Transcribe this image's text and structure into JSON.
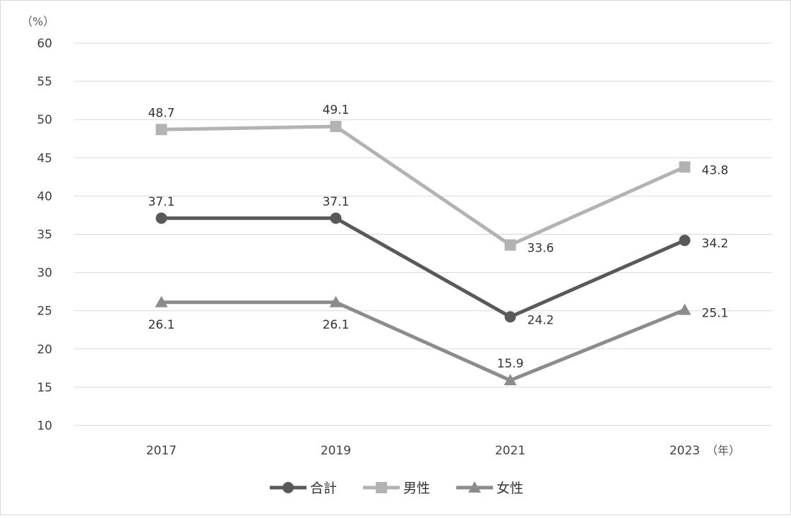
{
  "chart_data": {
    "type": "line",
    "y_unit_label": "（%）",
    "x_unit_label": "（年）",
    "categories": [
      "2017",
      "2019",
      "2021",
      "2023"
    ],
    "ylim": [
      10,
      60
    ],
    "y_ticks": [
      10,
      15,
      20,
      25,
      30,
      35,
      40,
      45,
      50,
      55,
      60
    ],
    "grid": true,
    "legend_position": "bottom",
    "series": [
      {
        "name": "合計",
        "values": [
          37.1,
          37.1,
          24.2,
          34.2
        ],
        "marker": "circle",
        "color": "#595959",
        "label_position": [
          "above",
          "above",
          "right",
          "right"
        ]
      },
      {
        "name": "男性",
        "values": [
          48.7,
          49.1,
          33.6,
          43.8
        ],
        "marker": "square",
        "color": "#b3b3b3",
        "label_position": [
          "above",
          "above",
          "right",
          "right"
        ]
      },
      {
        "name": "女性",
        "values": [
          26.1,
          26.1,
          15.9,
          25.1
        ],
        "marker": "triangle",
        "color": "#8c8c8c",
        "label_position": [
          "below",
          "below",
          "above",
          "right"
        ]
      }
    ]
  }
}
